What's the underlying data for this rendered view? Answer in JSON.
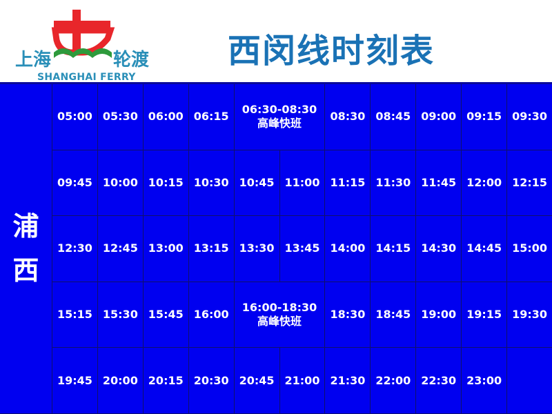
{
  "header": {
    "logo": {
      "cn_left": "上海",
      "cn_right": "轮渡",
      "en": "SHANGHAI FERRY"
    },
    "title": "西闵线时刻表"
  },
  "colors": {
    "table_bg": "#0000f0",
    "title": "#1a72b5",
    "logo_red": "#e8262b",
    "logo_green": "#2e9a3c"
  },
  "side_label": [
    "浦",
    "西"
  ],
  "rows": [
    [
      {
        "t": "05:00"
      },
      {
        "t": "05:30"
      },
      {
        "t": "06:00"
      },
      {
        "t": "06:15"
      },
      {
        "t": "06:30-08:30",
        "sub": "高峰快班",
        "span": 2
      },
      {
        "t": "08:30"
      },
      {
        "t": "08:45"
      },
      {
        "t": "09:00"
      },
      {
        "t": "09:15"
      },
      {
        "t": "09:30"
      }
    ],
    [
      {
        "t": "09:45"
      },
      {
        "t": "10:00"
      },
      {
        "t": "10:15"
      },
      {
        "t": "10:30"
      },
      {
        "t": "10:45"
      },
      {
        "t": "11:00"
      },
      {
        "t": "11:15"
      },
      {
        "t": "11:30"
      },
      {
        "t": "11:45"
      },
      {
        "t": "12:00"
      },
      {
        "t": "12:15"
      }
    ],
    [
      {
        "t": "12:30"
      },
      {
        "t": "12:45"
      },
      {
        "t": "13:00"
      },
      {
        "t": "13:15"
      },
      {
        "t": "13:30"
      },
      {
        "t": "13:45"
      },
      {
        "t": "14:00"
      },
      {
        "t": "14:15"
      },
      {
        "t": "14:30"
      },
      {
        "t": "14:45"
      },
      {
        "t": "15:00"
      }
    ],
    [
      {
        "t": "15:15"
      },
      {
        "t": "15:30"
      },
      {
        "t": "15:45"
      },
      {
        "t": "16:00"
      },
      {
        "t": "16:00-18:30",
        "sub": "高峰快班",
        "span": 2
      },
      {
        "t": "18:30"
      },
      {
        "t": "18:45"
      },
      {
        "t": "19:00"
      },
      {
        "t": "19:15"
      },
      {
        "t": "19:30"
      }
    ],
    [
      {
        "t": "19:45"
      },
      {
        "t": "20:00"
      },
      {
        "t": "20:15"
      },
      {
        "t": "20:30"
      },
      {
        "t": "20:45"
      },
      {
        "t": "21:00"
      },
      {
        "t": "21:30"
      },
      {
        "t": "22:00"
      },
      {
        "t": "22:30"
      },
      {
        "t": "23:00"
      },
      {
        "t": ""
      }
    ]
  ]
}
